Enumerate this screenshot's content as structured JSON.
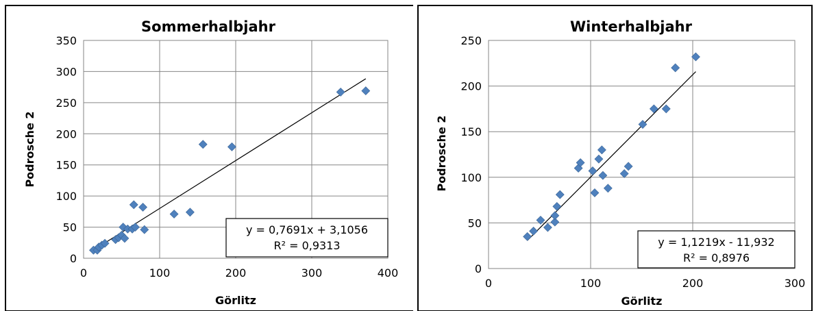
{
  "chart_data": [
    {
      "type": "scatter",
      "title": "Sommerhalbjahr",
      "xlabel": "Görlitz",
      "ylabel": "Podrosche 2",
      "xlim": [
        0,
        400
      ],
      "ylim": [
        0,
        350
      ],
      "xticks": [
        0,
        100,
        200,
        300,
        400
      ],
      "yticks": [
        0,
        50,
        100,
        150,
        200,
        250,
        300,
        350
      ],
      "grid": true,
      "marker_color": "#4F81BD",
      "points": [
        {
          "x": 13,
          "y": 13
        },
        {
          "x": 18,
          "y": 13
        },
        {
          "x": 20,
          "y": 18
        },
        {
          "x": 24,
          "y": 21
        },
        {
          "x": 28,
          "y": 24
        },
        {
          "x": 42,
          "y": 30
        },
        {
          "x": 46,
          "y": 33
        },
        {
          "x": 50,
          "y": 37
        },
        {
          "x": 52,
          "y": 50
        },
        {
          "x": 54,
          "y": 32
        },
        {
          "x": 58,
          "y": 47
        },
        {
          "x": 64,
          "y": 47
        },
        {
          "x": 66,
          "y": 86
        },
        {
          "x": 68,
          "y": 50
        },
        {
          "x": 78,
          "y": 82
        },
        {
          "x": 80,
          "y": 46
        },
        {
          "x": 119,
          "y": 71
        },
        {
          "x": 140,
          "y": 74
        },
        {
          "x": 157,
          "y": 183
        },
        {
          "x": 195,
          "y": 179
        },
        {
          "x": 338,
          "y": 267
        },
        {
          "x": 371,
          "y": 269
        }
      ],
      "trendline": {
        "slope": 0.7691,
        "intercept": 3.1056,
        "x_range": [
          13,
          371
        ]
      },
      "annotation": {
        "equation": "y = 0,7691x + 3,1056",
        "r2": "R² = 0,9313"
      }
    },
    {
      "type": "scatter",
      "title": "Winterhalbjahr",
      "xlabel": "Görlitz",
      "ylabel": "Podrosche 2",
      "xlim": [
        0,
        300
      ],
      "ylim": [
        0,
        250
      ],
      "xticks": [
        0,
        100,
        200,
        300
      ],
      "yticks": [
        0,
        50,
        100,
        150,
        200,
        250
      ],
      "grid": true,
      "marker_color": "#4F81BD",
      "points": [
        {
          "x": 38,
          "y": 35
        },
        {
          "x": 44,
          "y": 41
        },
        {
          "x": 51,
          "y": 53
        },
        {
          "x": 58,
          "y": 45
        },
        {
          "x": 65,
          "y": 51
        },
        {
          "x": 65,
          "y": 58
        },
        {
          "x": 67,
          "y": 68
        },
        {
          "x": 70,
          "y": 81
        },
        {
          "x": 88,
          "y": 110
        },
        {
          "x": 90,
          "y": 116
        },
        {
          "x": 102,
          "y": 107
        },
        {
          "x": 104,
          "y": 83
        },
        {
          "x": 108,
          "y": 120
        },
        {
          "x": 111,
          "y": 130
        },
        {
          "x": 112,
          "y": 102
        },
        {
          "x": 117,
          "y": 88
        },
        {
          "x": 133,
          "y": 104
        },
        {
          "x": 137,
          "y": 112
        },
        {
          "x": 151,
          "y": 158
        },
        {
          "x": 162,
          "y": 175
        },
        {
          "x": 174,
          "y": 175
        },
        {
          "x": 183,
          "y": 220
        },
        {
          "x": 203,
          "y": 232
        }
      ],
      "trendline": {
        "slope": 1.1219,
        "intercept": -11.932,
        "x_range": [
          38,
          203
        ]
      },
      "annotation": {
        "equation": "y = 1,1219x - 11,932",
        "r2": "R² = 0,8976"
      }
    }
  ]
}
